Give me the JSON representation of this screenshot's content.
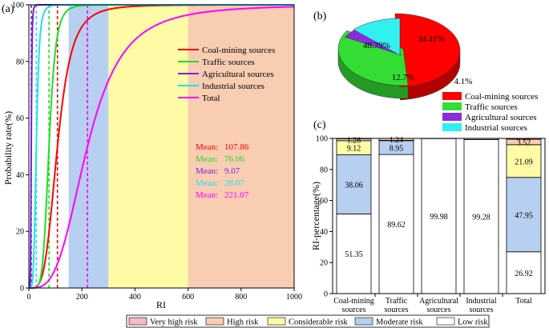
{
  "colors": {
    "coal": "#ff0000",
    "traffic": "#22dd22",
    "agri": "#7a1fd6",
    "industrial": "#22e0f0",
    "total": "#ff00ff",
    "very_high": "#f7b9c3",
    "high": "#f8cdb2",
    "considerable": "#fdfba6",
    "moderate": "#b7cff0",
    "low": "#ffffff",
    "pie_coal": "#ff0000",
    "pie_traffic": "#33dd33",
    "pie_agri": "#8a2be2",
    "pie_industrial": "#33f0f0"
  },
  "chart_data": [
    {
      "id": "a",
      "type": "line",
      "panel_label": "(a)",
      "xlabel": "RI",
      "ylabel": "Probability rate(%)",
      "xlim": [
        0,
        1000
      ],
      "ylim": [
        0,
        100
      ],
      "xticks": [
        "0",
        "200",
        "400",
        "600",
        "800",
        "1000"
      ],
      "yticks": [
        "0",
        "20",
        "40",
        "60",
        "80",
        "100"
      ],
      "risk_bands": [
        {
          "from": 150,
          "to": 300,
          "color": "#b7cff0"
        },
        {
          "from": 300,
          "to": 600,
          "color": "#fdfba6"
        },
        {
          "from": 600,
          "to": 1000,
          "color": "#f8cdb2"
        }
      ],
      "series": [
        {
          "name": "Coal-mining sources",
          "color": "#ff0000",
          "mean": 107.86,
          "median": 107.86,
          "shape": 4.0
        },
        {
          "name": "Traffic sources",
          "color": "#22dd22",
          "mean": 76.06,
          "median": 76.06,
          "shape": 6.0
        },
        {
          "name": "Agricultural sources",
          "color": "#7a1fd6",
          "mean": 9.07,
          "median": 9.07,
          "shape": 6.0
        },
        {
          "name": "Industrial sources",
          "color": "#22e0f0",
          "mean": 28.07,
          "median": 28.07,
          "shape": 5.0
        },
        {
          "name": "Total",
          "color": "#ff00ff",
          "mean": 221.07,
          "median": 221.07,
          "shape": 3.3
        }
      ],
      "mean_labels": [
        {
          "label": "Mean:",
          "value": "107.86",
          "color": "#ff0000"
        },
        {
          "label": "Mean:",
          "value": "76.06",
          "color": "#22dd22"
        },
        {
          "label": "Mean:",
          "value": "9.07",
          "color": "#7a1fd6"
        },
        {
          "label": "Mean:",
          "value": "28.07",
          "color": "#22e0f0"
        },
        {
          "label": "Mean:",
          "value": "221.07",
          "color": "#ff00ff"
        }
      ]
    },
    {
      "id": "b",
      "type": "pie",
      "panel_label": "(b)",
      "slices": [
        {
          "name": "Coal-mining sources",
          "value": 48.79,
          "label": "48.79%",
          "color": "#ff0000"
        },
        {
          "name": "Traffic sources",
          "value": 34.41,
          "label": "34.41%",
          "color": "#33dd33"
        },
        {
          "name": "Agricultural sources",
          "value": 4.1,
          "label": "4.1%",
          "color": "#8a2be2"
        },
        {
          "name": "Industrial sources",
          "value": 12.7,
          "label": "12.7%",
          "color": "#33f0f0"
        }
      ],
      "legend": [
        {
          "label": "Coal-mining sources",
          "color": "#ff0000"
        },
        {
          "label": "Traffic sources",
          "color": "#33dd33"
        },
        {
          "label": "Agricultural sources",
          "color": "#8a2be2"
        },
        {
          "label": "Industrial sources",
          "color": "#33f0f0"
        }
      ]
    },
    {
      "id": "c",
      "type": "bar",
      "stacked": true,
      "panel_label": "(c)",
      "ylabel": "RI-percentage(%)",
      "ylim": [
        0,
        100
      ],
      "yticks": [
        "0",
        "20",
        "40",
        "60",
        "80",
        "100"
      ],
      "categories": [
        "Coal-mining\nsources",
        "Traffic\nsources",
        "Agricultural\nsources",
        "Industrial\nsources",
        "Total"
      ],
      "series": [
        {
          "name": "Low risk",
          "color": "#ffffff",
          "values": [
            51.35,
            89.62,
            99.98,
            99.28,
            26.92
          ],
          "labels": [
            "51.35",
            "89.62",
            "99.98",
            "99.28",
            "26.92"
          ]
        },
        {
          "name": "Moderate risk",
          "color": "#b7cff0",
          "values": [
            38.06,
            8.95,
            0.02,
            0.72,
            47.95
          ],
          "labels": [
            "38.06",
            "8.95",
            "",
            "",
            "47.95"
          ]
        },
        {
          "name": "Considerable risk",
          "color": "#fdfba6",
          "values": [
            9.12,
            0.19,
            0,
            0,
            21.09
          ],
          "labels": [
            "9.12",
            "",
            "",
            "",
            "21.09"
          ]
        },
        {
          "name": "High risk",
          "color": "#f8cdb2",
          "values": [
            1.28,
            1.24,
            0,
            0,
            3.52
          ],
          "labels": [
            "1.28",
            "1.24",
            "",
            "",
            "3.52"
          ]
        },
        {
          "name": "Very high risk",
          "color": "#f7b9c3",
          "values": [
            0.19,
            0,
            0,
            0,
            0.52
          ],
          "labels": [
            "",
            "",
            "",
            "",
            ""
          ]
        }
      ]
    }
  ],
  "bottom_legend": [
    {
      "label": "Very high risk",
      "color": "#f7b9c3"
    },
    {
      "label": "High risk",
      "color": "#f8cdb2"
    },
    {
      "label": "Considerable risk",
      "color": "#fdfba6"
    },
    {
      "label": "Moderate risk",
      "color": "#b7cff0"
    },
    {
      "label": "Low risk",
      "color": "#ffffff"
    }
  ]
}
